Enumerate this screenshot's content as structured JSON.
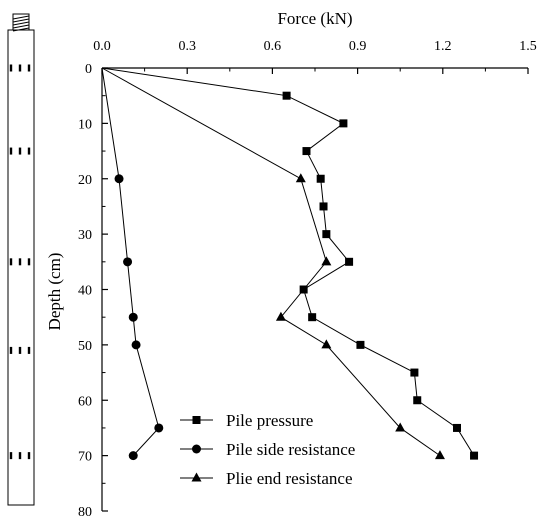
{
  "chart_data": {
    "type": "line",
    "title": "",
    "xlabel": "Force (kN)",
    "ylabel": "Depth (cm)",
    "xlim": [
      0.0,
      1.5
    ],
    "ylim": [
      0,
      80
    ],
    "x_axis_position": "top",
    "y_axis_inverted": true,
    "x_ticks": [
      0.0,
      0.3,
      0.6,
      0.9,
      1.2,
      1.5
    ],
    "x_tick_labels": [
      "0.0",
      "0.3",
      "0.6",
      "0.9",
      "1.2",
      "1.5"
    ],
    "y_ticks": [
      0,
      10,
      20,
      30,
      40,
      50,
      60,
      70,
      80
    ],
    "y_tick_labels": [
      "0",
      "10",
      "20",
      "30",
      "40",
      "50",
      "60",
      "70",
      "80"
    ],
    "grid": false,
    "legend_position": "bottom-center",
    "series": [
      {
        "name": "Pile pressure",
        "marker": "square",
        "points": [
          [
            0.0,
            0
          ],
          [
            0.65,
            5
          ],
          [
            0.85,
            10
          ],
          [
            0.72,
            15
          ],
          [
            0.77,
            20
          ],
          [
            0.78,
            25
          ],
          [
            0.79,
            30
          ],
          [
            0.87,
            35
          ],
          [
            0.71,
            40
          ],
          [
            0.74,
            45
          ],
          [
            0.91,
            50
          ],
          [
            1.1,
            55
          ],
          [
            1.11,
            60
          ],
          [
            1.25,
            65
          ],
          [
            1.31,
            70
          ]
        ]
      },
      {
        "name": "Pile side resistance",
        "marker": "circle",
        "points": [
          [
            0.0,
            0
          ],
          [
            0.06,
            20
          ],
          [
            0.09,
            35
          ],
          [
            0.11,
            45
          ],
          [
            0.12,
            50
          ],
          [
            0.2,
            65
          ],
          [
            0.11,
            70
          ]
        ]
      },
      {
        "name": "Plie end resistance",
        "marker": "triangle",
        "points": [
          [
            0.0,
            0
          ],
          [
            0.7,
            20
          ],
          [
            0.79,
            35
          ],
          [
            0.63,
            45
          ],
          [
            0.79,
            50
          ],
          [
            1.05,
            65
          ],
          [
            1.19,
            70
          ]
        ]
      }
    ]
  },
  "pile_figure": {
    "description_marker_depths": [
      0,
      10,
      20,
      35,
      50,
      70
    ],
    "gauge_depths": [
      0,
      15,
      35,
      51,
      70
    ]
  }
}
